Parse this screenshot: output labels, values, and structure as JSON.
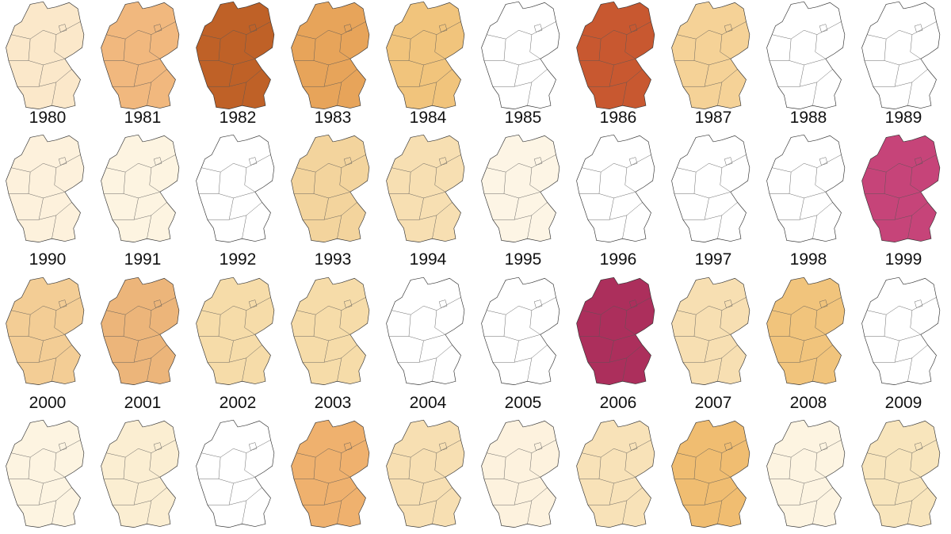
{
  "rows": [
    {
      "years": [
        "1980",
        "1981",
        "1982",
        "1983",
        "1984",
        "1985",
        "1986",
        "1987",
        "1988",
        "1989"
      ],
      "colors": [
        "#fbe6c4",
        "#f0b070",
        "#b8500f",
        "#e49a48",
        "#efbe6e",
        null,
        "#c2461a",
        "#f4cd8c",
        null,
        null
      ]
    },
    {
      "years": [
        "1990",
        "1991",
        "1992",
        "1993",
        "1994",
        "1995",
        "1996",
        "1997",
        "1998",
        "1999"
      ],
      "colors": [
        "#fdf0d8",
        "#fdf3de",
        null,
        "#f2cf92",
        "#f6dcaa",
        "#fdf4e2",
        null,
        null,
        null,
        "#c0306a"
      ]
    },
    {
      "years": [
        "2000",
        "2001",
        "2002",
        "2003",
        "2004",
        "2005",
        "2006",
        "2007",
        "2008",
        "2009"
      ],
      "colors": [
        "#f2c88a",
        "#eaad6c",
        "#f5d8a0",
        "#f5d8a0",
        null,
        null,
        "#a3184a",
        "#f6dcaa",
        "#efbe6e",
        null
      ]
    },
    {
      "colors": [
        "#fdf3de",
        "#fbeccd",
        null,
        "#eda95e",
        "#f6dcaa",
        "#fdf1da",
        "#f7dfb0",
        "#eeb662",
        "#fdf3de",
        "#f7e2b5"
      ]
    }
  ]
}
